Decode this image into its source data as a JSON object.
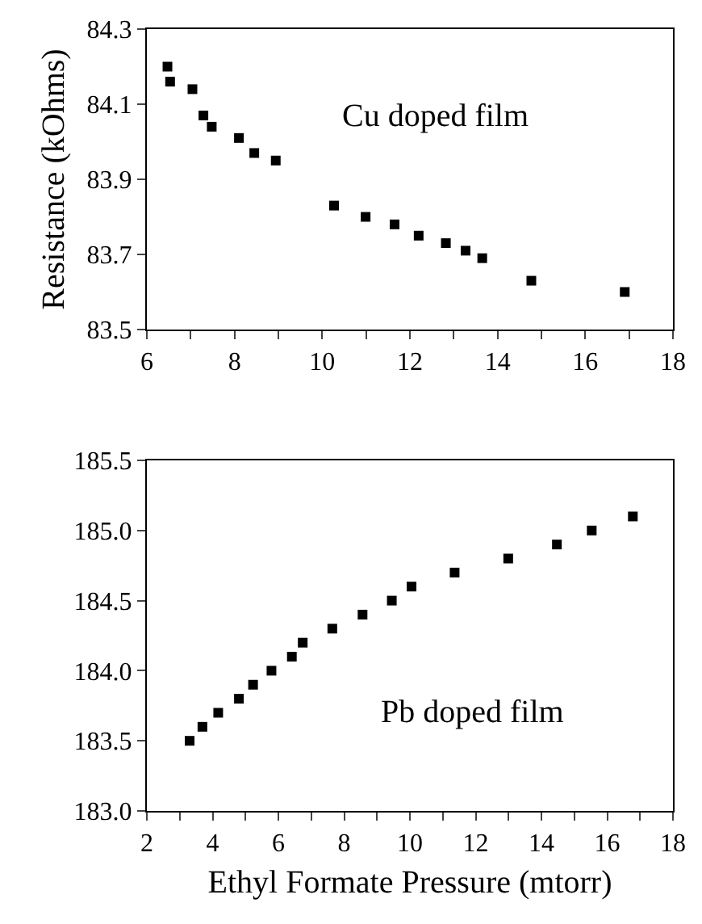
{
  "chart_data": [
    {
      "type": "scatter",
      "ylabel": "Resistance (kOhms)",
      "annotations": [
        "Cu doped film"
      ],
      "marker": "square",
      "series": [
        {
          "color": "#000000",
          "x": [
            6.47,
            6.53,
            7.04,
            7.29,
            7.48,
            8.1,
            8.45,
            8.94,
            10.27,
            10.99,
            11.65,
            12.2,
            12.82,
            13.27,
            13.65,
            14.77,
            16.9
          ],
          "values": [
            84.2,
            84.16,
            84.14,
            84.07,
            84.04,
            84.01,
            83.97,
            83.95,
            83.83,
            83.8,
            83.78,
            83.75,
            83.73,
            83.71,
            83.69,
            83.63,
            83.6
          ]
        }
      ],
      "xlim": [
        6,
        18
      ],
      "xticks": [
        6,
        {
          "value": 7,
          "label": null
        },
        8,
        {
          "value": 9,
          "label": null
        },
        10,
        {
          "value": 11,
          "label": null
        },
        12,
        {
          "value": 13,
          "label": null
        },
        14,
        {
          "value": 15,
          "label": null
        },
        16,
        {
          "value": 17,
          "label": null
        },
        18
      ],
      "ylim": [
        83.5,
        84.3
      ],
      "yticks": [
        83.5,
        83.7,
        83.9,
        84.1,
        84.3
      ]
    },
    {
      "type": "scatter",
      "xlabel": "Ethyl Formate Pressure (mtorr)",
      "annotations": [
        "Pb doped film"
      ],
      "marker": "square",
      "series": [
        {
          "color": "#000000",
          "x": [
            3.3,
            3.69,
            4.17,
            4.8,
            5.23,
            5.79,
            6.41,
            6.74,
            7.64,
            8.56,
            9.45,
            10.05,
            11.36,
            12.99,
            14.47,
            15.53,
            16.78
          ],
          "values": [
            183.5,
            183.6,
            183.7,
            183.8,
            183.9,
            184.0,
            184.1,
            184.2,
            184.3,
            184.4,
            184.5,
            184.6,
            184.7,
            184.8,
            184.9,
            185.0,
            185.1
          ]
        }
      ],
      "xlim": [
        2,
        18
      ],
      "xticks": [
        2,
        {
          "value": 3,
          "label": null
        },
        4,
        {
          "value": 5,
          "label": null
        },
        6,
        {
          "value": 7,
          "label": null
        },
        8,
        {
          "value": 9,
          "label": null
        },
        10,
        {
          "value": 11,
          "label": null
        },
        12,
        {
          "value": 13,
          "label": null
        },
        14,
        {
          "value": 15,
          "label": null
        },
        16,
        {
          "value": 17,
          "label": null
        },
        18
      ],
      "ylim": [
        183.0,
        185.5
      ],
      "yticks": [
        {
          "value": 183.0,
          "label": "183.0"
        },
        {
          "value": 183.5,
          "label": "183.5"
        },
        {
          "value": 184.0,
          "label": "184.0"
        },
        {
          "value": 184.5,
          "label": "184.5"
        },
        {
          "value": 185.0,
          "label": "185.0"
        },
        {
          "value": 185.5,
          "label": "185.5"
        }
      ]
    }
  ]
}
